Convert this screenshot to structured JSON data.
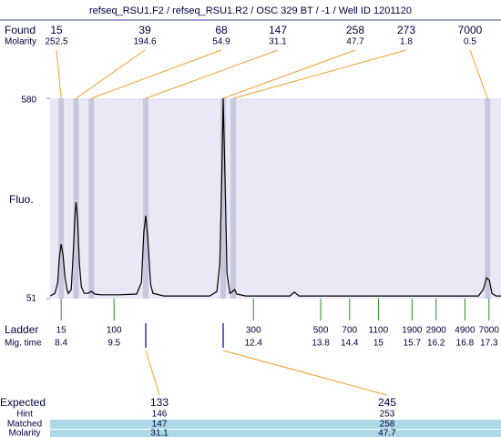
{
  "chart_data": {
    "type": "electropherogram",
    "title": "refseq_RSU1.F2 / refseq_RSU1.R2 / OSC 329 BT / -1 / Well ID 1201120",
    "y_label": "Fluo.",
    "xlim": [
      8.17,
      17.55
    ],
    "ylim": [
      51,
      580
    ],
    "yticks": [
      51,
      580
    ],
    "color": "#000000",
    "x": [
      8.17,
      8.27,
      8.33,
      8.36,
      8.4,
      8.44,
      8.48,
      8.52,
      8.55,
      8.61,
      8.65,
      8.69,
      8.71,
      8.74,
      8.78,
      8.82,
      8.88,
      8.95,
      9.03,
      9.1,
      9.22,
      9.6,
      9.97,
      10.07,
      10.12,
      10.16,
      10.2,
      10.26,
      10.31,
      10.54,
      11.49,
      11.64,
      11.7,
      11.74,
      11.77,
      11.81,
      11.85,
      11.91,
      11.97,
      12.01,
      12.05,
      12.24,
      13.16,
      13.25,
      13.35,
      14.71,
      16.03,
      17.08,
      17.18,
      17.25,
      17.31,
      17.36,
      17.45,
      17.55
    ],
    "y": [
      58,
      65,
      94,
      154,
      195,
      166,
      106,
      75,
      65,
      75,
      166,
      275,
      306,
      263,
      142,
      82,
      65,
      65,
      70,
      63,
      61,
      61,
      63,
      94,
      227,
      270,
      215,
      89,
      65,
      58,
      58,
      70,
      142,
      359,
      580,
      359,
      118,
      65,
      70,
      75,
      63,
      58,
      58,
      68,
      58,
      58,
      58,
      58,
      75,
      106,
      99,
      65,
      58,
      58
    ],
    "found": {
      "label": "Found",
      "sizes": [
        15,
        39,
        68,
        147,
        258,
        273,
        7000
      ],
      "molarity_label": "Molarity",
      "molarity": [
        252.5,
        194.6,
        54.9,
        31.1,
        47.7,
        1.8,
        0.5
      ],
      "x": [
        8.4,
        8.71,
        9.03,
        10.16,
        11.77,
        11.98,
        17.27
      ]
    },
    "ladder": {
      "label": "Ladder",
      "time_label": "Mig. time",
      "sizes": [
        15,
        100,
        300,
        500,
        700,
        1100,
        1900,
        2900,
        4900,
        7000
      ],
      "times": [
        8.4,
        9.5,
        12.4,
        13.8,
        14.4,
        15,
        15.7,
        16.2,
        16.8,
        17.3
      ]
    },
    "expected": {
      "label": "Expected",
      "sizes": [
        133,
        245
      ],
      "hint_label": "Hint",
      "hint": [
        146,
        253
      ],
      "matched_label": "Matched",
      "matched": [
        147,
        258
      ],
      "molarity_label": "Molarity",
      "molarity": [
        31.1,
        47.7
      ]
    }
  }
}
